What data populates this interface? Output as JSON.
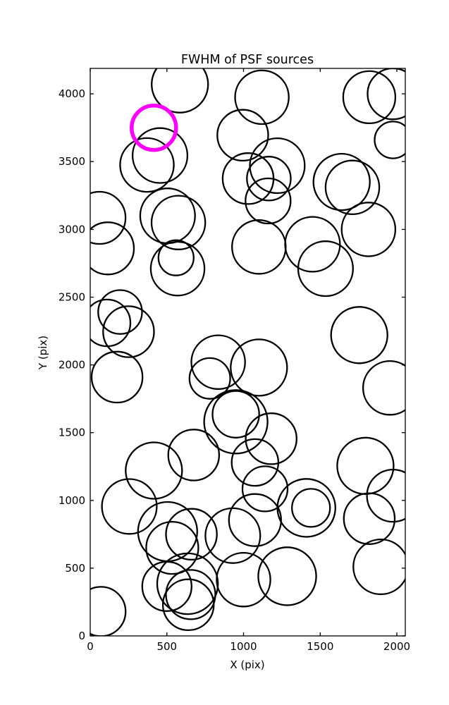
{
  "figure": {
    "background": "#ffffff",
    "title": "FWHM of PSF sources"
  },
  "axes": {
    "xlabel": "X (pix)",
    "ylabel": "Y (pix)",
    "x_ticks": [
      0,
      500,
      1000,
      1500,
      2000
    ],
    "y_ticks": [
      0,
      500,
      1000,
      1500,
      2000,
      2500,
      3000,
      3500,
      4000
    ],
    "frame_color": "#000000",
    "tick_direction": "in"
  },
  "chart_data": {
    "type": "scatter",
    "title": "FWHM of PSF sources",
    "xlabel": "X (pix)",
    "ylabel": "Y (pix)",
    "xlim": [
      0,
      2055
    ],
    "ylim": [
      0,
      4188
    ],
    "grid": false,
    "legend": "none",
    "marker": "open-circle",
    "marker_stroke_px": 2.3,
    "highlight_stroke_px": 5.5,
    "colors": {
      "source": "#000000",
      "highlight": "#ff00ff"
    },
    "note": "x, y, r in pixel units of the image coordinate system shown on the axes; r is marker radius",
    "points": [
      {
        "x": 585,
        "y": 4070,
        "r": 184
      },
      {
        "x": 455,
        "y": 3545,
        "r": 179
      },
      {
        "x": 370,
        "y": 3475,
        "r": 175
      },
      {
        "x": 995,
        "y": 3695,
        "r": 166
      },
      {
        "x": 1120,
        "y": 3975,
        "r": 175
      },
      {
        "x": 1820,
        "y": 3975,
        "r": 170
      },
      {
        "x": 1975,
        "y": 4000,
        "r": 166
      },
      {
        "x": 1975,
        "y": 3660,
        "r": 120
      },
      {
        "x": 1640,
        "y": 3350,
        "r": 184
      },
      {
        "x": 1710,
        "y": 3310,
        "r": 175
      },
      {
        "x": 1220,
        "y": 3470,
        "r": 179
      },
      {
        "x": 1030,
        "y": 3375,
        "r": 166
      },
      {
        "x": 1165,
        "y": 3375,
        "r": 143
      },
      {
        "x": 1160,
        "y": 3210,
        "r": 147
      },
      {
        "x": 60,
        "y": 3085,
        "r": 170
      },
      {
        "x": 115,
        "y": 2860,
        "r": 170
      },
      {
        "x": 505,
        "y": 3100,
        "r": 179
      },
      {
        "x": 575,
        "y": 3050,
        "r": 175
      },
      {
        "x": 570,
        "y": 2710,
        "r": 175
      },
      {
        "x": 560,
        "y": 2790,
        "r": 115
      },
      {
        "x": 1100,
        "y": 2870,
        "r": 175
      },
      {
        "x": 1450,
        "y": 2890,
        "r": 179
      },
      {
        "x": 1535,
        "y": 2710,
        "r": 179
      },
      {
        "x": 1815,
        "y": 3000,
        "r": 175
      },
      {
        "x": 835,
        "y": 2020,
        "r": 175
      },
      {
        "x": 1100,
        "y": 1980,
        "r": 184
      },
      {
        "x": 780,
        "y": 1900,
        "r": 133
      },
      {
        "x": 950,
        "y": 1580,
        "r": 207
      },
      {
        "x": 950,
        "y": 1635,
        "r": 152
      },
      {
        "x": 1180,
        "y": 1455,
        "r": 166
      },
      {
        "x": 1075,
        "y": 1280,
        "r": 152
      },
      {
        "x": 675,
        "y": 1335,
        "r": 166
      },
      {
        "x": 1140,
        "y": 1085,
        "r": 147
      },
      {
        "x": 195,
        "y": 2390,
        "r": 143
      },
      {
        "x": 110,
        "y": 2310,
        "r": 152
      },
      {
        "x": 250,
        "y": 2245,
        "r": 166
      },
      {
        "x": 175,
        "y": 1910,
        "r": 166
      },
      {
        "x": 415,
        "y": 1220,
        "r": 184
      },
      {
        "x": 1755,
        "y": 2220,
        "r": 184
      },
      {
        "x": 1955,
        "y": 1830,
        "r": 175
      },
      {
        "x": 1795,
        "y": 1255,
        "r": 184
      },
      {
        "x": 255,
        "y": 955,
        "r": 179
      },
      {
        "x": 70,
        "y": 180,
        "r": 161
      },
      {
        "x": 505,
        "y": 770,
        "r": 193
      },
      {
        "x": 535,
        "y": 650,
        "r": 170
      },
      {
        "x": 660,
        "y": 750,
        "r": 166
      },
      {
        "x": 930,
        "y": 740,
        "r": 179
      },
      {
        "x": 635,
        "y": 385,
        "r": 198
      },
      {
        "x": 655,
        "y": 305,
        "r": 161
      },
      {
        "x": 500,
        "y": 365,
        "r": 161
      },
      {
        "x": 640,
        "y": 230,
        "r": 166
      },
      {
        "x": 1000,
        "y": 415,
        "r": 175
      },
      {
        "x": 1075,
        "y": 855,
        "r": 170
      },
      {
        "x": 1285,
        "y": 440,
        "r": 189
      },
      {
        "x": 1410,
        "y": 945,
        "r": 189
      },
      {
        "x": 1440,
        "y": 945,
        "r": 124
      },
      {
        "x": 1820,
        "y": 865,
        "r": 166
      },
      {
        "x": 1975,
        "y": 1035,
        "r": 170
      },
      {
        "x": 1895,
        "y": 510,
        "r": 179
      }
    ],
    "highlight_point": {
      "x": 415,
      "y": 3750,
      "r": 145
    }
  }
}
